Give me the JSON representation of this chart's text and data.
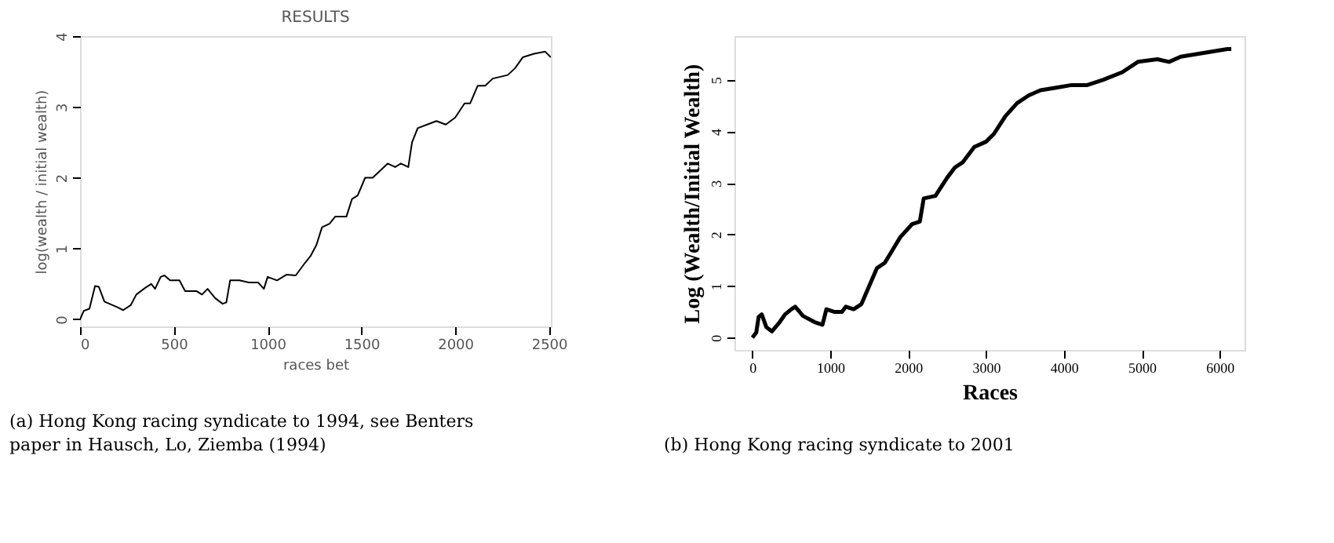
{
  "chart_data": [
    {
      "type": "line",
      "title": "RESULTS",
      "xlabel": "races bet",
      "ylabel": "log(wealth / initial wealth)",
      "xlim": [
        0,
        2510
      ],
      "ylim": [
        -0.1,
        4
      ],
      "xticks": [
        0,
        500,
        1000,
        1500,
        2000,
        2500
      ],
      "yticks": [
        0,
        1,
        2,
        3,
        4
      ],
      "grid": false,
      "annotations": [
        "(a) Hong Kong racing syndicate to 1994, see Benters paper in Hausch, Lo, Ziemba (1994)"
      ],
      "series": [
        {
          "color": "#000000",
          "x": [
            0,
            20,
            50,
            80,
            100,
            130,
            200,
            230,
            270,
            300,
            350,
            380,
            400,
            430,
            450,
            480,
            530,
            560,
            620,
            650,
            680,
            720,
            760,
            780,
            800,
            850,
            900,
            950,
            980,
            1000,
            1050,
            1100,
            1150,
            1200,
            1230,
            1260,
            1290,
            1330,
            1360,
            1420,
            1450,
            1480,
            1520,
            1560,
            1600,
            1640,
            1680,
            1710,
            1750,
            1770,
            1800,
            1850,
            1900,
            1950,
            2000,
            2050,
            2080,
            2120,
            2160,
            2200,
            2280,
            2320,
            2360,
            2420,
            2480,
            2510
          ],
          "values": [
            0,
            0.12,
            0.15,
            0.47,
            0.46,
            0.25,
            0.17,
            0.13,
            0.2,
            0.35,
            0.45,
            0.5,
            0.43,
            0.6,
            0.62,
            0.55,
            0.55,
            0.4,
            0.4,
            0.35,
            0.43,
            0.3,
            0.22,
            0.24,
            0.55,
            0.55,
            0.52,
            0.52,
            0.43,
            0.6,
            0.55,
            0.63,
            0.62,
            0.8,
            0.9,
            1.05,
            1.3,
            1.35,
            1.45,
            1.45,
            1.7,
            1.75,
            2.0,
            2.0,
            2.1,
            2.2,
            2.15,
            2.2,
            2.15,
            2.5,
            2.7,
            2.75,
            2.8,
            2.75,
            2.85,
            3.05,
            3.05,
            3.3,
            3.3,
            3.4,
            3.45,
            3.55,
            3.7,
            3.75,
            3.78,
            3.7
          ]
        }
      ]
    },
    {
      "type": "line",
      "xlabel": "Races",
      "ylabel": "Log (Wealth/Initial Wealth)",
      "xlim": [
        -230,
        6320
      ],
      "ylim": [
        -0.24,
        5.85
      ],
      "xticks": [
        0,
        1000,
        2000,
        3000,
        4000,
        5000,
        6000
      ],
      "yticks": [
        0,
        1,
        2,
        3,
        4,
        5
      ],
      "grid": false,
      "annotations": [
        "(b) Hong Kong racing syndicate to 2001"
      ],
      "series": [
        {
          "color": "#000000",
          "x": [
            0,
            50,
            80,
            120,
            180,
            250,
            350,
            420,
            500,
            550,
            650,
            800,
            900,
            950,
            1050,
            1150,
            1200,
            1300,
            1400,
            1500,
            1600,
            1700,
            1800,
            1900,
            2050,
            2150,
            2200,
            2350,
            2500,
            2600,
            2700,
            2850,
            3000,
            3100,
            3250,
            3400,
            3550,
            3700,
            3900,
            4100,
            4300,
            4500,
            4750,
            4950,
            5200,
            5350,
            5500,
            5700,
            5900,
            6100,
            6150
          ],
          "values": [
            0,
            0.1,
            0.4,
            0.45,
            0.2,
            0.12,
            0.3,
            0.45,
            0.55,
            0.6,
            0.42,
            0.3,
            0.25,
            0.55,
            0.5,
            0.5,
            0.6,
            0.55,
            0.65,
            1.0,
            1.35,
            1.45,
            1.7,
            1.95,
            2.2,
            2.25,
            2.7,
            2.75,
            3.1,
            3.3,
            3.4,
            3.7,
            3.8,
            3.95,
            4.3,
            4.55,
            4.7,
            4.8,
            4.85,
            4.9,
            4.9,
            5.0,
            5.15,
            5.35,
            5.4,
            5.35,
            5.45,
            5.5,
            5.55,
            5.6,
            5.6
          ]
        }
      ]
    }
  ]
}
